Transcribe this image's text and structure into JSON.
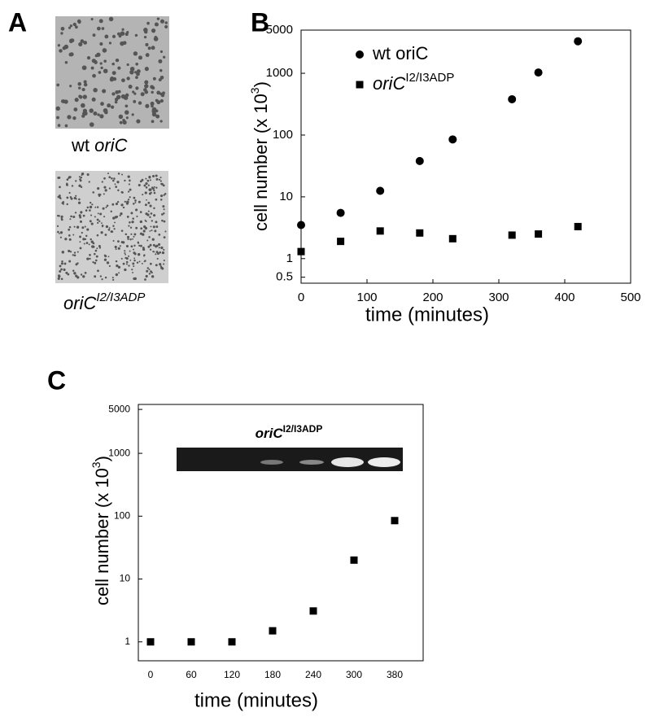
{
  "panels": {
    "a": "A",
    "b": "B",
    "c": "C"
  },
  "panel_a": {
    "captions": [
      {
        "pre": "wt",
        "italic": "oriC"
      },
      {
        "italic": "oriC",
        "sup": "I2/I3ADP"
      }
    ]
  },
  "chart_data": [
    {
      "type": "scatter",
      "ylog": true,
      "xlim": [
        0,
        500
      ],
      "xticks": [
        0,
        100,
        200,
        300,
        400,
        500
      ],
      "ylim": [
        0.4,
        5000
      ],
      "yticks": [
        0.5,
        1,
        10,
        100,
        1000,
        5000
      ],
      "xlabel": "time (minutes)",
      "ylabel": {
        "text": "cell number (x 10",
        "sup": "3",
        "tail": ")"
      },
      "series": [
        {
          "name": "wt oriC",
          "marker": "circle",
          "color": "#000000",
          "x": [
            0,
            60,
            120,
            180,
            230,
            320,
            360,
            420
          ],
          "values": [
            3.5,
            5.5,
            12.5,
            38,
            85,
            380,
            1030,
            3300
          ]
        },
        {
          "name": "oriC",
          "name_sup": "I2/I3ADP",
          "marker": "square",
          "color": "#000000",
          "x": [
            0,
            60,
            120,
            180,
            230,
            320,
            360,
            420
          ],
          "values": [
            1.3,
            1.9,
            2.8,
            2.6,
            2.1,
            2.4,
            2.5,
            3.3
          ]
        }
      ]
    },
    {
      "type": "scatter",
      "ylog": true,
      "categories": [
        "0",
        "60",
        "120",
        "180",
        "240",
        "300",
        "380"
      ],
      "ylim": [
        0.5,
        6000
      ],
      "yticks": [
        1,
        10,
        100,
        1000,
        5000
      ],
      "xlabel": "time (minutes)",
      "ylabel": {
        "text": "cell number (x 10",
        "sup": "3",
        "tail": ")"
      },
      "inset_title": {
        "text": "oriC",
        "sup": "I2/I3ADP"
      },
      "series": [
        {
          "marker": "square",
          "color": "#000000",
          "values": [
            1,
            1,
            1,
            1.5,
            3.1,
            20,
            85
          ]
        }
      ]
    }
  ]
}
